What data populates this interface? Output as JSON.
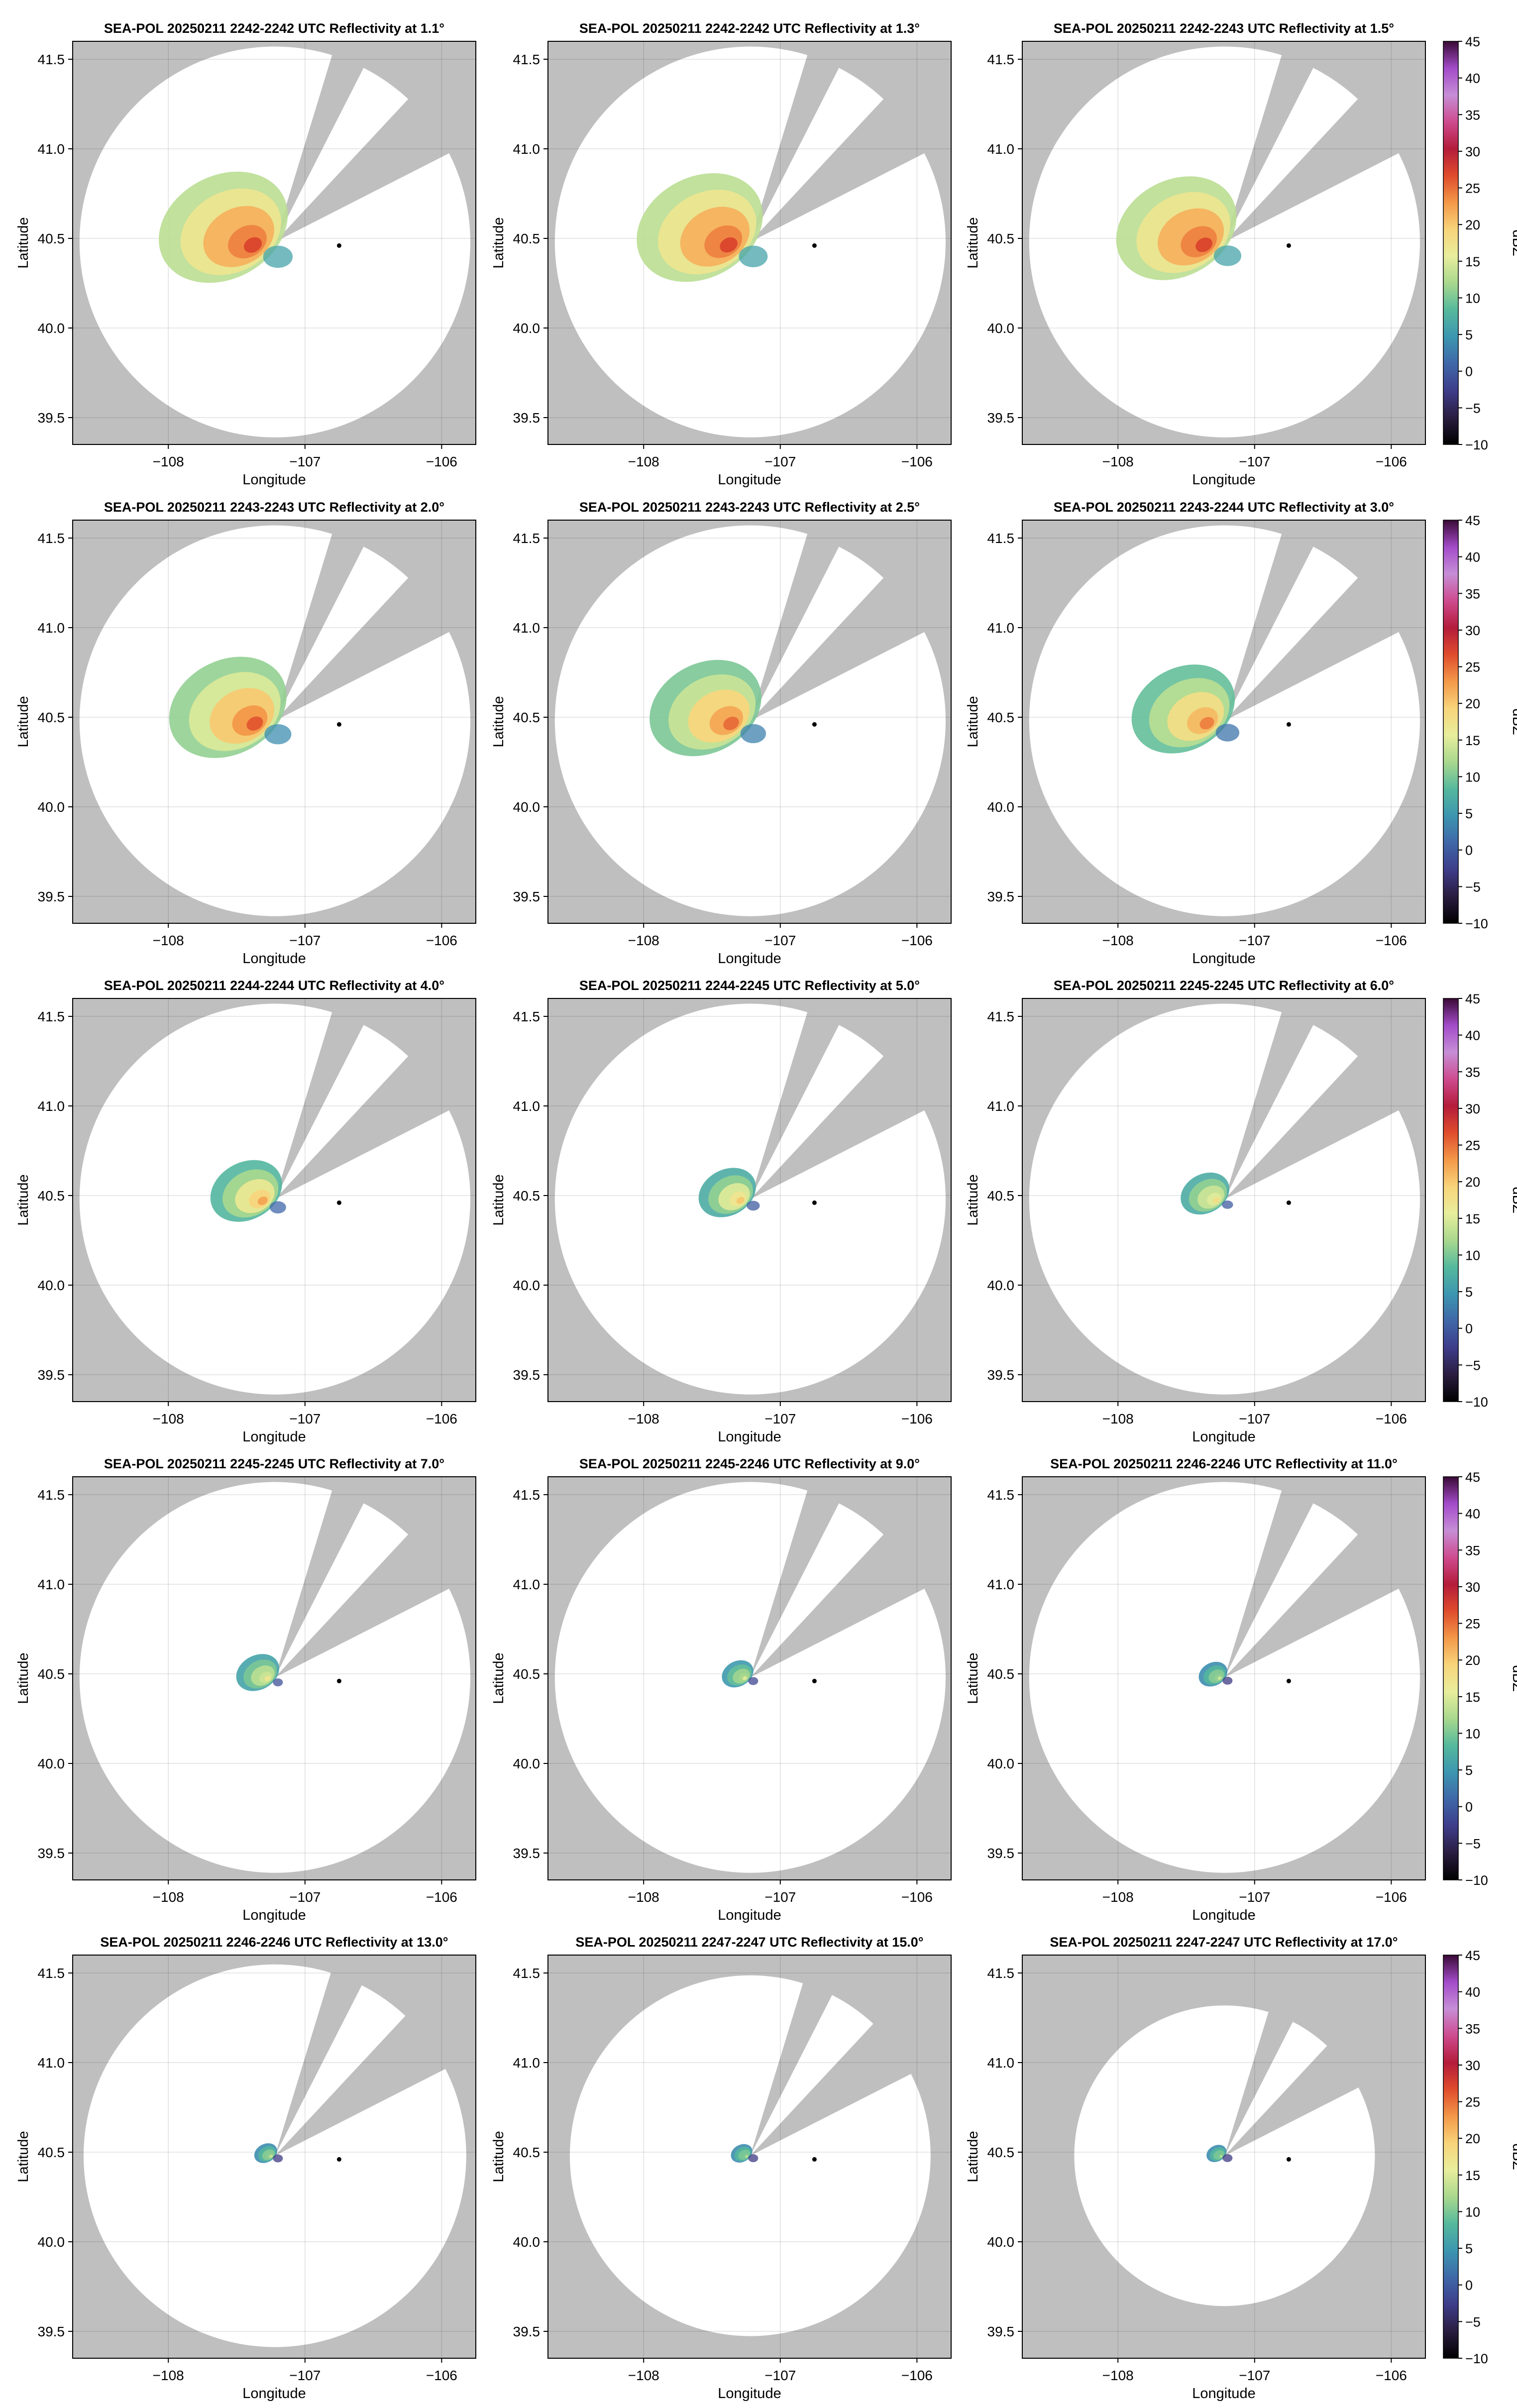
{
  "figure": {
    "xlabel": "Longitude",
    "ylabel": "Latitude",
    "colorbar_label": "dBZ",
    "background_no_coverage": "#bfbfbf",
    "coverage_fill": "#ffffff",
    "grid": true
  },
  "colorbar": {
    "range": [
      -10,
      45
    ],
    "ticks": [
      -10,
      -5,
      0,
      5,
      10,
      15,
      20,
      25,
      30,
      35,
      40,
      45
    ],
    "tick_labels": [
      "−10",
      "−5",
      "0",
      "5",
      "10",
      "15",
      "20",
      "25",
      "30",
      "35",
      "40",
      "45"
    ],
    "colors": [
      "#000000",
      "#2a1d40",
      "#3e3d8a",
      "#3f67a8",
      "#3c96b0",
      "#55b99d",
      "#a9d88e",
      "#e8ee9c",
      "#f8d47a",
      "#f39849",
      "#df4c2c",
      "#b41c3b",
      "#ce4b8f",
      "#c68ed6",
      "#a34bc9",
      "#3a0a36"
    ]
  },
  "chart_data": [
    {
      "type": "heatmap",
      "title": "SEA-POL 20250211 2242-2242 UTC Reflectivity at 1.1°",
      "xlabel": "Longitude",
      "ylabel": "Latitude",
      "xlim": [
        -108.7,
        -105.75
      ],
      "ylim": [
        39.35,
        41.6
      ],
      "xticks": [
        -108,
        -107,
        -106
      ],
      "xtick_labels": [
        "−108",
        "−107",
        "−106"
      ],
      "yticks": [
        39.5,
        40.0,
        40.5,
        41.0,
        41.5
      ],
      "ytick_labels": [
        "39.5",
        "40.0",
        "40.5",
        "41.0",
        "41.5"
      ],
      "radar_marker": [
        -106.75,
        40.46
      ],
      "origin": [
        -107.22,
        40.48
      ],
      "max_range_deg": 1.43,
      "echo": {
        "extent": 0.9,
        "peak": 27,
        "low": 12
      },
      "colorbar": false
    },
    {
      "type": "heatmap",
      "title": "SEA-POL 20250211 2242-2242 UTC Reflectivity at 1.3°",
      "xlabel": "Longitude",
      "ylabel": "Latitude",
      "xlim": [
        -108.7,
        -105.75
      ],
      "ylim": [
        39.35,
        41.6
      ],
      "xticks": [
        -108,
        -107,
        -106
      ],
      "xtick_labels": [
        "−108",
        "−107",
        "−106"
      ],
      "yticks": [
        39.5,
        40.0,
        40.5,
        41.0,
        41.5
      ],
      "ytick_labels": [
        "39.5",
        "40.0",
        "40.5",
        "41.0",
        "41.5"
      ],
      "radar_marker": [
        -106.75,
        40.46
      ],
      "origin": [
        -107.22,
        40.48
      ],
      "max_range_deg": 1.43,
      "echo": {
        "extent": 0.88,
        "peak": 27,
        "low": 12
      },
      "colorbar": false
    },
    {
      "type": "heatmap",
      "title": "SEA-POL 20250211 2242-2243 UTC Reflectivity at 1.5°",
      "xlabel": "Longitude",
      "ylabel": "Latitude",
      "xlim": [
        -108.7,
        -105.75
      ],
      "ylim": [
        39.35,
        41.6
      ],
      "xticks": [
        -108,
        -107,
        -106
      ],
      "xtick_labels": [
        "−108",
        "−107",
        "−106"
      ],
      "yticks": [
        39.5,
        40.0,
        40.5,
        41.0,
        41.5
      ],
      "ytick_labels": [
        "39.5",
        "40.0",
        "40.5",
        "41.0",
        "41.5"
      ],
      "radar_marker": [
        -106.75,
        40.46
      ],
      "origin": [
        -107.22,
        40.48
      ],
      "max_range_deg": 1.43,
      "echo": {
        "extent": 0.84,
        "peak": 27,
        "low": 12
      },
      "colorbar": true
    },
    {
      "type": "heatmap",
      "title": "SEA-POL 20250211 2243-2243 UTC Reflectivity at 2.0°",
      "xlabel": "Longitude",
      "ylabel": "Latitude",
      "xlim": [
        -108.7,
        -105.75
      ],
      "ylim": [
        39.35,
        41.6
      ],
      "xticks": [
        -108,
        -107,
        -106
      ],
      "xtick_labels": [
        "−108",
        "−107",
        "−106"
      ],
      "yticks": [
        39.5,
        40.0,
        40.5,
        41.0,
        41.5
      ],
      "ytick_labels": [
        "39.5",
        "40.0",
        "40.5",
        "41.0",
        "41.5"
      ],
      "radar_marker": [
        -106.75,
        40.46
      ],
      "origin": [
        -107.22,
        40.48
      ],
      "max_range_deg": 1.43,
      "echo": {
        "extent": 0.82,
        "peak": 26,
        "low": 10
      },
      "colorbar": false
    },
    {
      "type": "heatmap",
      "title": "SEA-POL 20250211 2243-2243 UTC Reflectivity at 2.5°",
      "xlabel": "Longitude",
      "ylabel": "Latitude",
      "xlim": [
        -108.7,
        -105.75
      ],
      "ylim": [
        39.35,
        41.6
      ],
      "xticks": [
        -108,
        -107,
        -106
      ],
      "xtick_labels": [
        "−108",
        "−107",
        "−106"
      ],
      "yticks": [
        39.5,
        40.0,
        40.5,
        41.0,
        41.5
      ],
      "ytick_labels": [
        "39.5",
        "40.0",
        "40.5",
        "41.0",
        "41.5"
      ],
      "radar_marker": [
        -106.75,
        40.46
      ],
      "origin": [
        -107.22,
        40.48
      ],
      "max_range_deg": 1.43,
      "echo": {
        "extent": 0.78,
        "peak": 25,
        "low": 9
      },
      "colorbar": false
    },
    {
      "type": "heatmap",
      "title": "SEA-POL 20250211 2243-2244 UTC Reflectivity at 3.0°",
      "xlabel": "Longitude",
      "ylabel": "Latitude",
      "xlim": [
        -108.7,
        -105.75
      ],
      "ylim": [
        39.35,
        41.6
      ],
      "xticks": [
        -108,
        -107,
        -106
      ],
      "xtick_labels": [
        "−108",
        "−107",
        "−106"
      ],
      "yticks": [
        39.5,
        40.0,
        40.5,
        41.0,
        41.5
      ],
      "ytick_labels": [
        "39.5",
        "40.0",
        "40.5",
        "41.0",
        "41.5"
      ],
      "radar_marker": [
        -106.75,
        40.46
      ],
      "origin": [
        -107.22,
        40.48
      ],
      "max_range_deg": 1.43,
      "echo": {
        "extent": 0.72,
        "peak": 24,
        "low": 8
      },
      "colorbar": true
    },
    {
      "type": "heatmap",
      "title": "SEA-POL 20250211 2244-2244 UTC Reflectivity at 4.0°",
      "xlabel": "Longitude",
      "ylabel": "Latitude",
      "xlim": [
        -108.7,
        -105.75
      ],
      "ylim": [
        39.35,
        41.6
      ],
      "xticks": [
        -108,
        -107,
        -106
      ],
      "xtick_labels": [
        "−108",
        "−107",
        "−106"
      ],
      "yticks": [
        39.5,
        40.0,
        40.5,
        41.0,
        41.5
      ],
      "ytick_labels": [
        "39.5",
        "40.0",
        "40.5",
        "41.0",
        "41.5"
      ],
      "radar_marker": [
        -106.75,
        40.46
      ],
      "origin": [
        -107.22,
        40.48
      ],
      "max_range_deg": 1.43,
      "echo": {
        "extent": 0.5,
        "peak": 22,
        "low": 7
      },
      "colorbar": false
    },
    {
      "type": "heatmap",
      "title": "SEA-POL 20250211 2244-2245 UTC Reflectivity at 5.0°",
      "xlabel": "Longitude",
      "ylabel": "Latitude",
      "xlim": [
        -108.7,
        -105.75
      ],
      "ylim": [
        39.35,
        41.6
      ],
      "xticks": [
        -108,
        -107,
        -106
      ],
      "xtick_labels": [
        "−108",
        "−107",
        "−106"
      ],
      "yticks": [
        39.5,
        40.0,
        40.5,
        41.0,
        41.5
      ],
      "ytick_labels": [
        "39.5",
        "40.0",
        "40.5",
        "41.0",
        "41.5"
      ],
      "radar_marker": [
        -106.75,
        40.46
      ],
      "origin": [
        -107.22,
        40.48
      ],
      "max_range_deg": 1.43,
      "echo": {
        "extent": 0.4,
        "peak": 20,
        "low": 6
      },
      "colorbar": false
    },
    {
      "type": "heatmap",
      "title": "SEA-POL 20250211 2245-2245 UTC Reflectivity at 6.0°",
      "xlabel": "Longitude",
      "ylabel": "Latitude",
      "xlim": [
        -108.7,
        -105.75
      ],
      "ylim": [
        39.35,
        41.6
      ],
      "xticks": [
        -108,
        -107,
        -106
      ],
      "xtick_labels": [
        "−108",
        "−107",
        "−106"
      ],
      "yticks": [
        39.5,
        40.0,
        40.5,
        41.0,
        41.5
      ],
      "ytick_labels": [
        "39.5",
        "40.0",
        "40.5",
        "41.0",
        "41.5"
      ],
      "radar_marker": [
        -106.75,
        40.46
      ],
      "origin": [
        -107.22,
        40.48
      ],
      "max_range_deg": 1.43,
      "echo": {
        "extent": 0.34,
        "peak": 18,
        "low": 6
      },
      "colorbar": true
    },
    {
      "type": "heatmap",
      "title": "SEA-POL 20250211 2245-2245 UTC Reflectivity at 7.0°",
      "xlabel": "Longitude",
      "ylabel": "Latitude",
      "xlim": [
        -108.7,
        -105.75
      ],
      "ylim": [
        39.35,
        41.6
      ],
      "xticks": [
        -108,
        -107,
        -106
      ],
      "xtick_labels": [
        "−108",
        "−107",
        "−106"
      ],
      "yticks": [
        39.5,
        40.0,
        40.5,
        41.0,
        41.5
      ],
      "ytick_labels": [
        "39.5",
        "40.0",
        "40.5",
        "41.0",
        "41.5"
      ],
      "radar_marker": [
        -106.75,
        40.46
      ],
      "origin": [
        -107.22,
        40.48
      ],
      "max_range_deg": 1.43,
      "echo": {
        "extent": 0.3,
        "peak": 17,
        "low": 5
      },
      "colorbar": false
    },
    {
      "type": "heatmap",
      "title": "SEA-POL 20250211 2245-2246 UTC Reflectivity at 9.0°",
      "xlabel": "Longitude",
      "ylabel": "Latitude",
      "xlim": [
        -108.7,
        -105.75
      ],
      "ylim": [
        39.35,
        41.6
      ],
      "xticks": [
        -108,
        -107,
        -106
      ],
      "xtick_labels": [
        "−108",
        "−107",
        "−106"
      ],
      "yticks": [
        39.5,
        40.0,
        40.5,
        41.0,
        41.5
      ],
      "ytick_labels": [
        "39.5",
        "40.0",
        "40.5",
        "41.0",
        "41.5"
      ],
      "radar_marker": [
        -106.75,
        40.46
      ],
      "origin": [
        -107.22,
        40.48
      ],
      "max_range_deg": 1.43,
      "echo": {
        "extent": 0.22,
        "peak": 15,
        "low": 4
      },
      "colorbar": false
    },
    {
      "type": "heatmap",
      "title": "SEA-POL 20250211 2246-2246 UTC Reflectivity at 11.0°",
      "xlabel": "Longitude",
      "ylabel": "Latitude",
      "xlim": [
        -108.7,
        -105.75
      ],
      "ylim": [
        39.35,
        41.6
      ],
      "xticks": [
        -108,
        -107,
        -106
      ],
      "xtick_labels": [
        "−108",
        "−107",
        "−106"
      ],
      "yticks": [
        39.5,
        40.0,
        40.5,
        41.0,
        41.5
      ],
      "ytick_labels": [
        "39.5",
        "40.0",
        "40.5",
        "41.0",
        "41.5"
      ],
      "radar_marker": [
        -106.75,
        40.46
      ],
      "origin": [
        -107.22,
        40.48
      ],
      "max_range_deg": 1.43,
      "echo": {
        "extent": 0.2,
        "peak": 14,
        "low": 3
      },
      "colorbar": true
    },
    {
      "type": "heatmap",
      "title": "SEA-POL 20250211 2246-2246 UTC Reflectivity at 13.0°",
      "xlabel": "Longitude",
      "ylabel": "Latitude",
      "xlim": [
        -108.7,
        -105.75
      ],
      "ylim": [
        39.35,
        41.6
      ],
      "xticks": [
        -108,
        -107,
        -106
      ],
      "xtick_labels": [
        "−108",
        "−107",
        "−106"
      ],
      "yticks": [
        39.5,
        40.0,
        40.5,
        41.0,
        41.5
      ],
      "ytick_labels": [
        "39.5",
        "40.0",
        "40.5",
        "41.0",
        "41.5"
      ],
      "radar_marker": [
        -106.75,
        40.46
      ],
      "origin": [
        -107.22,
        40.48
      ],
      "max_range_deg": 1.4,
      "echo": {
        "extent": 0.16,
        "peak": 14,
        "low": 3
      },
      "colorbar": false
    },
    {
      "type": "heatmap",
      "title": "SEA-POL 20250211 2247-2247 UTC Reflectivity at 15.0°",
      "xlabel": "Longitude",
      "ylabel": "Latitude",
      "xlim": [
        -108.7,
        -105.75
      ],
      "ylim": [
        39.35,
        41.6
      ],
      "xticks": [
        -108,
        -107,
        -106
      ],
      "xtick_labels": [
        "−108",
        "−107",
        "−106"
      ],
      "yticks": [
        39.5,
        40.0,
        40.5,
        41.0,
        41.5
      ],
      "ytick_labels": [
        "39.5",
        "40.0",
        "40.5",
        "41.0",
        "41.5"
      ],
      "radar_marker": [
        -106.75,
        40.46
      ],
      "origin": [
        -107.22,
        40.48
      ],
      "max_range_deg": 1.32,
      "echo": {
        "extent": 0.15,
        "peak": 13,
        "low": 3
      },
      "colorbar": false
    },
    {
      "type": "heatmap",
      "title": "SEA-POL 20250211 2247-2247 UTC Reflectivity at 17.0°",
      "xlabel": "Longitude",
      "ylabel": "Latitude",
      "xlim": [
        -108.7,
        -105.75
      ],
      "ylim": [
        39.35,
        41.6
      ],
      "xticks": [
        -108,
        -107,
        -106
      ],
      "xtick_labels": [
        "−108",
        "−107",
        "−106"
      ],
      "yticks": [
        39.5,
        40.0,
        40.5,
        41.0,
        41.5
      ],
      "ytick_labels": [
        "39.5",
        "40.0",
        "40.5",
        "41.0",
        "41.5"
      ],
      "radar_marker": [
        -106.75,
        40.46
      ],
      "origin": [
        -107.22,
        40.48
      ],
      "max_range_deg": 1.1,
      "echo": {
        "extent": 0.14,
        "peak": 13,
        "low": 3
      },
      "colorbar": true
    }
  ]
}
